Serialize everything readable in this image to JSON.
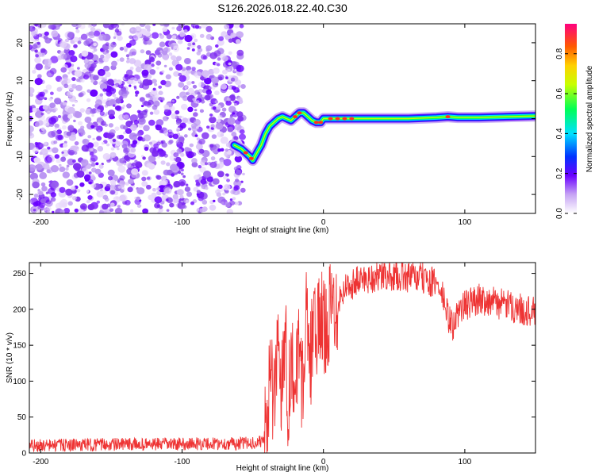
{
  "title": "S126.2026.018.22.40.C30",
  "chart_data": [
    {
      "type": "heatmap",
      "title": "S126.2026.018.22.40.C30",
      "xlabel": "Height of straight line (km)",
      "ylabel": "Frequency (Hz)",
      "xlim": [
        -208,
        150
      ],
      "ylim": [
        -25,
        25
      ],
      "xticks": [
        -200,
        -100,
        0,
        100
      ],
      "yticks": [
        -20,
        -10,
        0,
        10,
        20
      ],
      "noise_region_x": [
        -208,
        -62
      ],
      "signal_trace": {
        "x": [
          -63,
          -58,
          -55,
          -52,
          -50,
          -47,
          -44,
          -41,
          -38,
          -35,
          -32,
          -29,
          -26,
          -23,
          -20,
          -17,
          -14,
          -11,
          -8,
          -5,
          -2,
          0,
          5,
          10,
          20,
          40,
          60,
          80,
          88,
          95,
          110,
          130,
          150
        ],
        "freq": [
          -7,
          -8,
          -9,
          -10,
          -11,
          -9,
          -7,
          -4,
          -2,
          -1,
          0,
          0.5,
          0,
          -0.5,
          0.5,
          1.5,
          1.5,
          0.5,
          -0.5,
          -1,
          -1,
          0,
          0,
          0,
          0,
          0,
          0,
          0.3,
          0.5,
          0.3,
          0.3,
          0.5,
          0.7
        ]
      },
      "colorbar": {
        "label": "Normalized spectral amplitude",
        "ticks": [
          0.0,
          0.2,
          0.4,
          0.6,
          0.8
        ],
        "range": [
          0,
          0.95
        ]
      }
    },
    {
      "type": "line",
      "xlabel": "Height of straight line (km)",
      "ylabel": "SNR (10 * v/v)",
      "xlim": [
        -208,
        150
      ],
      "ylim": [
        0,
        265
      ],
      "xticks": [
        -200,
        -100,
        0,
        100
      ],
      "yticks": [
        0,
        50,
        100,
        150,
        200,
        250
      ],
      "series": [
        {
          "name": "SNR",
          "color": "#ee3333",
          "x": [
            -208,
            -180,
            -150,
            -120,
            -90,
            -60,
            -45,
            -40,
            -38,
            -35,
            -32,
            -30,
            -27,
            -25,
            -22,
            -20,
            -17,
            -15,
            -12,
            -10,
            -7,
            -5,
            -2,
            0,
            5,
            10,
            15,
            20,
            25,
            30,
            40,
            50,
            60,
            70,
            80,
            85,
            88,
            92,
            96,
            100,
            110,
            120,
            130,
            140,
            150
          ],
          "y": [
            10,
            11,
            12,
            12,
            13,
            13,
            15,
            25,
            120,
            60,
            170,
            90,
            180,
            70,
            150,
            60,
            180,
            80,
            200,
            100,
            190,
            150,
            200,
            170,
            200,
            210,
            230,
            235,
            240,
            243,
            245,
            247,
            245,
            243,
            235,
            215,
            190,
            175,
            200,
            205,
            215,
            210,
            205,
            200,
            195
          ]
        }
      ]
    }
  ]
}
